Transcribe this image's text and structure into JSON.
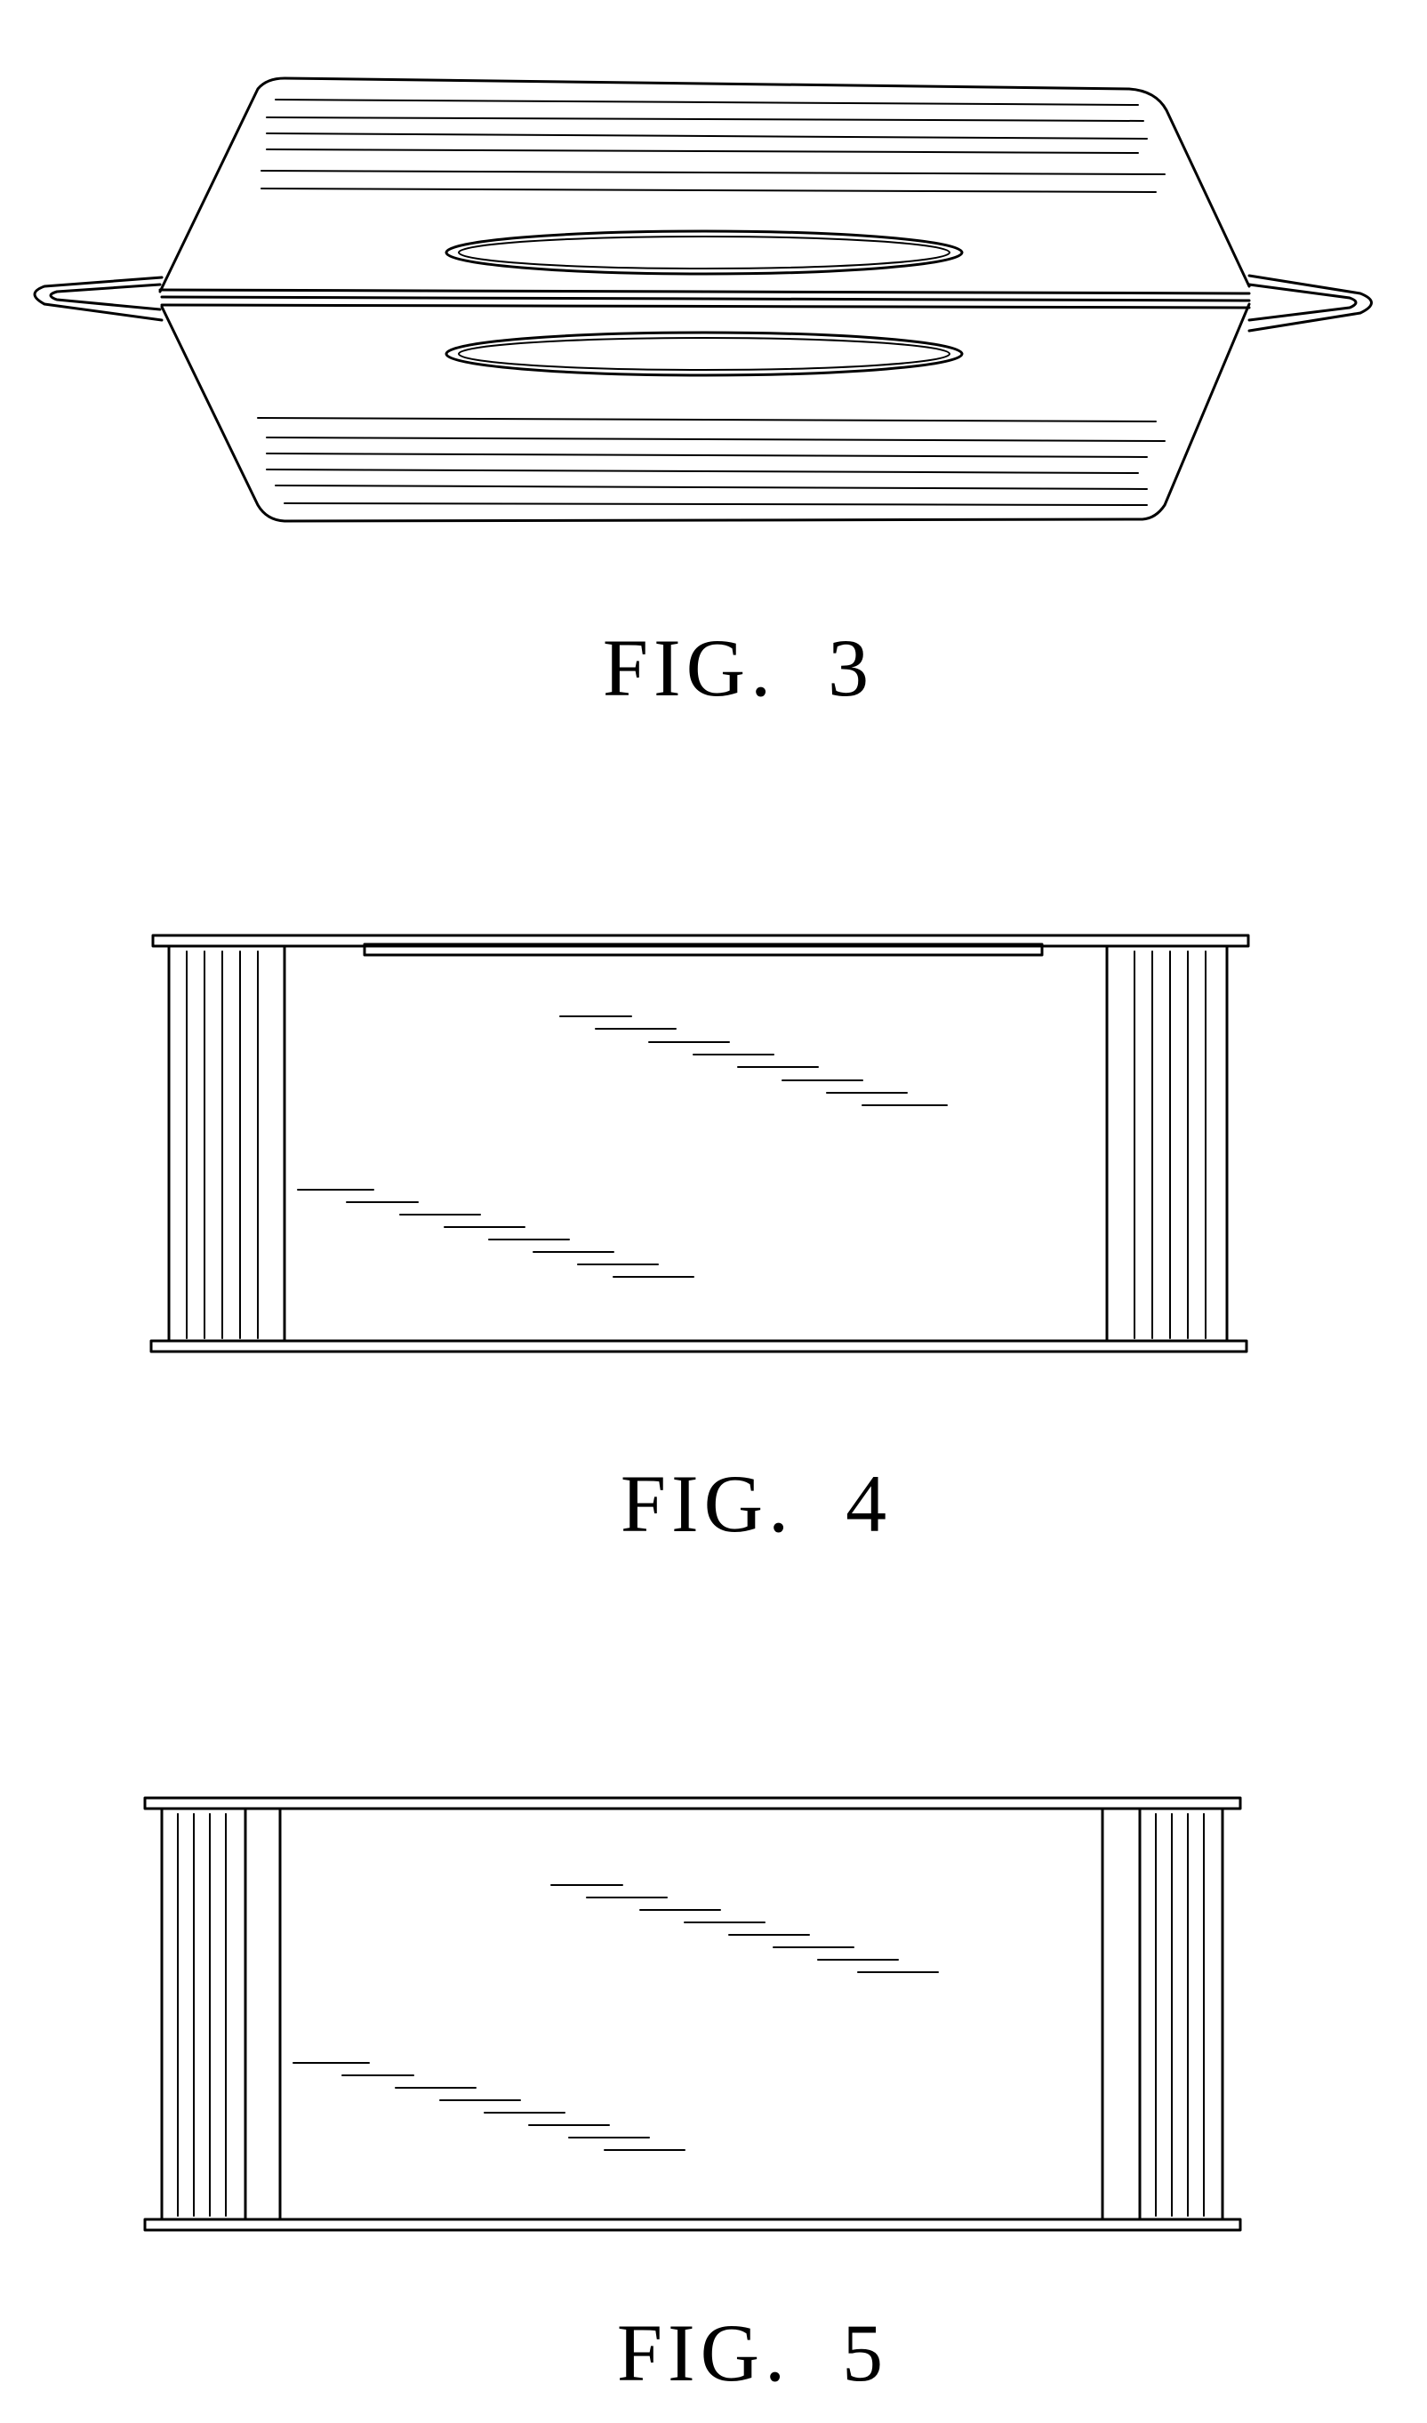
{
  "figures": [
    {
      "id": "fig3",
      "caption": "FIG.  3"
    },
    {
      "id": "fig4",
      "caption": "FIG.  4"
    },
    {
      "id": "fig5",
      "caption": "FIG.  5"
    }
  ],
  "colors": {
    "background": "#ffffff",
    "ink": "#000000"
  }
}
